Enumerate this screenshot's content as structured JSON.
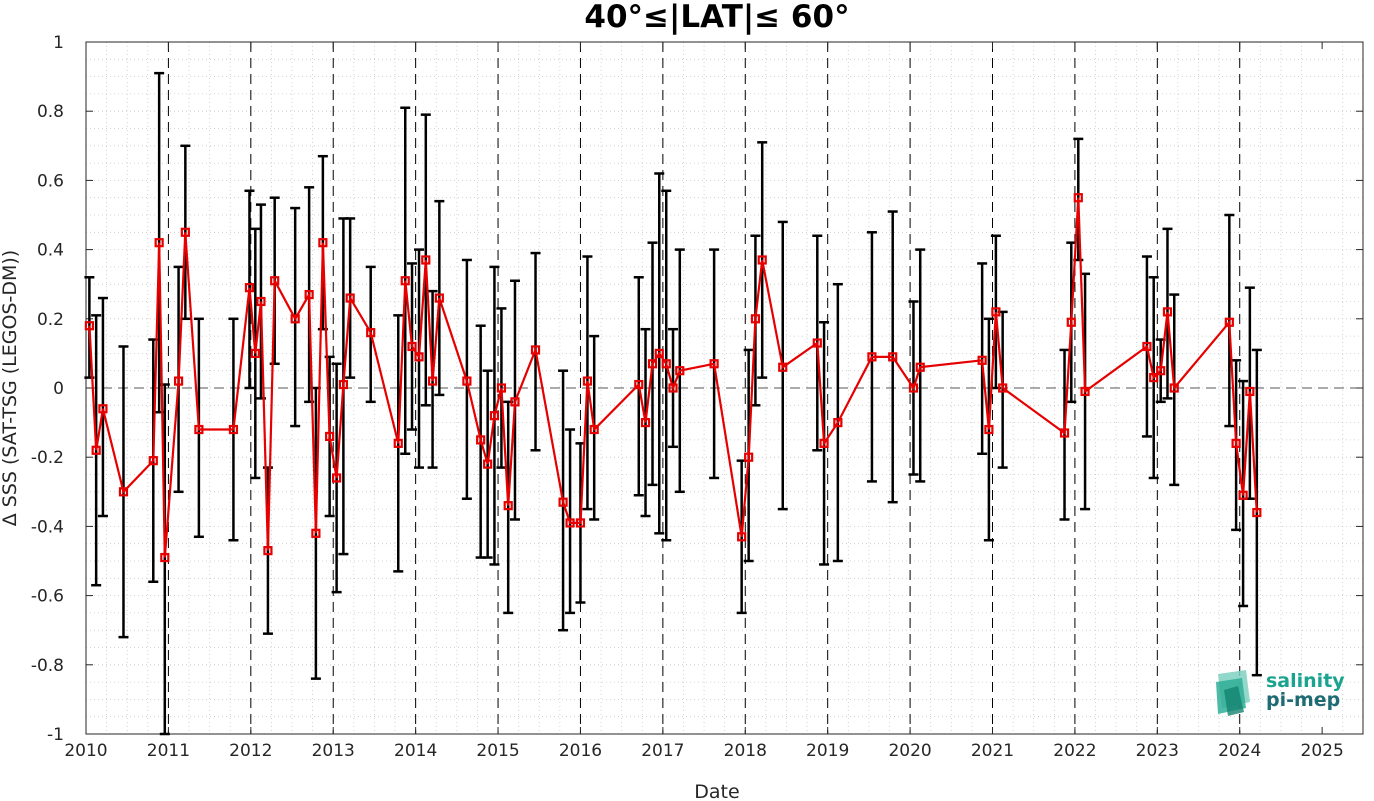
{
  "chart_data": {
    "type": "line",
    "title": "40°≤|LAT|≤ 60°",
    "xlabel": "Date",
    "ylabel": "Δ SSS (SAT-TSG (LEGOS-DM))",
    "xlim": [
      "2010-01-01",
      "2025-07-01"
    ],
    "ylim": [
      -1,
      1
    ],
    "x_ticks": [
      "2010",
      "2011",
      "2012",
      "2013",
      "2014",
      "2015",
      "2016",
      "2017",
      "2018",
      "2019",
      "2020",
      "2021",
      "2022",
      "2023",
      "2024",
      "2025"
    ],
    "y_ticks": [
      "-1",
      "-0.8",
      "-0.6",
      "-0.4",
      "-0.2",
      "0",
      "0.2",
      "0.4",
      "0.6",
      "0.8",
      "1"
    ],
    "grid": "dotted minor grid",
    "vertical_year_lines": "dashed at each January 1",
    "zero_line": "dashed",
    "series": [
      {
        "color": "#e60000",
        "marker": "square",
        "points": [
          {
            "x": "2010-01-16",
            "y": 0.18,
            "err_lo": 0.03,
            "err_hi": 0.32
          },
          {
            "x": "2010-02-15",
            "y": -0.18,
            "err_lo": -0.57,
            "err_hi": 0.21
          },
          {
            "x": "2010-03-17",
            "y": -0.06,
            "err_lo": -0.37,
            "err_hi": 0.26
          },
          {
            "x": "2010-06-16",
            "y": -0.3,
            "err_lo": -0.72,
            "err_hi": 0.12
          },
          {
            "x": "2010-10-26",
            "y": -0.21,
            "err_lo": -0.56,
            "err_hi": 0.14
          },
          {
            "x": "2010-11-21",
            "y": 0.42,
            "err_lo": -0.07,
            "err_hi": 0.91
          },
          {
            "x": "2010-12-16",
            "y": -0.49,
            "err_lo": -1.0,
            "err_hi": 0.01
          },
          {
            "x": "2011-02-15",
            "y": 0.02,
            "err_lo": -0.3,
            "err_hi": 0.35
          },
          {
            "x": "2011-03-17",
            "y": 0.45,
            "err_lo": 0.2,
            "err_hi": 0.7
          },
          {
            "x": "2011-05-16",
            "y": -0.12,
            "err_lo": -0.43,
            "err_hi": 0.2
          },
          {
            "x": "2011-10-16",
            "y": -0.12,
            "err_lo": -0.44,
            "err_hi": 0.2
          },
          {
            "x": "2011-12-26",
            "y": 0.29,
            "err_lo": 0.0,
            "err_hi": 0.57
          },
          {
            "x": "2012-01-21",
            "y": 0.1,
            "err_lo": -0.26,
            "err_hi": 0.46
          },
          {
            "x": "2012-02-15",
            "y": 0.25,
            "err_lo": -0.03,
            "err_hi": 0.53
          },
          {
            "x": "2012-03-17",
            "y": -0.47,
            "err_lo": -0.71,
            "err_hi": -0.23
          },
          {
            "x": "2012-04-16",
            "y": 0.31,
            "err_lo": 0.07,
            "err_hi": 0.55
          },
          {
            "x": "2012-07-16",
            "y": 0.2,
            "err_lo": -0.11,
            "err_hi": 0.52
          },
          {
            "x": "2012-09-16",
            "y": 0.27,
            "err_lo": -0.04,
            "err_hi": 0.58
          },
          {
            "x": "2012-10-16",
            "y": -0.42,
            "err_lo": -0.84,
            "err_hi": 0.0
          },
          {
            "x": "2012-11-16",
            "y": 0.42,
            "err_lo": 0.17,
            "err_hi": 0.67
          },
          {
            "x": "2012-12-16",
            "y": -0.14,
            "err_lo": -0.37,
            "err_hi": 0.09
          },
          {
            "x": "2013-01-16",
            "y": -0.26,
            "err_lo": -0.59,
            "err_hi": 0.07
          },
          {
            "x": "2013-02-15",
            "y": 0.01,
            "err_lo": -0.48,
            "err_hi": 0.49
          },
          {
            "x": "2013-03-17",
            "y": 0.26,
            "err_lo": 0.03,
            "err_hi": 0.49
          },
          {
            "x": "2013-06-16",
            "y": 0.16,
            "err_lo": -0.04,
            "err_hi": 0.35
          },
          {
            "x": "2013-10-16",
            "y": -0.16,
            "err_lo": -0.53,
            "err_hi": 0.21
          },
          {
            "x": "2013-11-16",
            "y": 0.31,
            "err_lo": -0.19,
            "err_hi": 0.81
          },
          {
            "x": "2013-12-16",
            "y": 0.12,
            "err_lo": -0.12,
            "err_hi": 0.36
          },
          {
            "x": "2014-01-16",
            "y": 0.09,
            "err_lo": -0.23,
            "err_hi": 0.4
          },
          {
            "x": "2014-02-15",
            "y": 0.37,
            "err_lo": -0.05,
            "err_hi": 0.79
          },
          {
            "x": "2014-03-17",
            "y": 0.02,
            "err_lo": -0.23,
            "err_hi": 0.28
          },
          {
            "x": "2014-04-16",
            "y": 0.26,
            "err_lo": -0.02,
            "err_hi": 0.54
          },
          {
            "x": "2014-08-16",
            "y": 0.02,
            "err_lo": -0.32,
            "err_hi": 0.37
          },
          {
            "x": "2014-10-16",
            "y": -0.15,
            "err_lo": -0.49,
            "err_hi": 0.18
          },
          {
            "x": "2014-11-16",
            "y": -0.22,
            "err_lo": -0.49,
            "err_hi": 0.05
          },
          {
            "x": "2014-12-16",
            "y": -0.08,
            "err_lo": -0.51,
            "err_hi": 0.35
          },
          {
            "x": "2015-01-16",
            "y": 0.0,
            "err_lo": -0.23,
            "err_hi": 0.23
          },
          {
            "x": "2015-02-15",
            "y": -0.34,
            "err_lo": -0.65,
            "err_hi": -0.04
          },
          {
            "x": "2015-03-17",
            "y": -0.04,
            "err_lo": -0.38,
            "err_hi": 0.31
          },
          {
            "x": "2015-06-16",
            "y": 0.11,
            "err_lo": -0.18,
            "err_hi": 0.39
          },
          {
            "x": "2015-10-16",
            "y": -0.33,
            "err_lo": -0.7,
            "err_hi": 0.05
          },
          {
            "x": "2015-11-16",
            "y": -0.39,
            "err_lo": -0.65,
            "err_hi": -0.12
          },
          {
            "x": "2016-01-01",
            "y": -0.39,
            "err_lo": -0.62,
            "err_hi": -0.16
          },
          {
            "x": "2016-02-01",
            "y": 0.02,
            "err_lo": -0.35,
            "err_hi": 0.38
          },
          {
            "x": "2016-03-02",
            "y": -0.12,
            "err_lo": -0.38,
            "err_hi": 0.15
          },
          {
            "x": "2016-09-16",
            "y": 0.01,
            "err_lo": -0.31,
            "err_hi": 0.32
          },
          {
            "x": "2016-10-16",
            "y": -0.1,
            "err_lo": -0.37,
            "err_hi": 0.17
          },
          {
            "x": "2016-11-16",
            "y": 0.07,
            "err_lo": -0.28,
            "err_hi": 0.42
          },
          {
            "x": "2016-12-16",
            "y": 0.1,
            "err_lo": -0.42,
            "err_hi": 0.62
          },
          {
            "x": "2017-01-16",
            "y": 0.07,
            "err_lo": -0.44,
            "err_hi": 0.57
          },
          {
            "x": "2017-02-15",
            "y": 0.0,
            "err_lo": -0.17,
            "err_hi": 0.17
          },
          {
            "x": "2017-03-17",
            "y": 0.05,
            "err_lo": -0.3,
            "err_hi": 0.4
          },
          {
            "x": "2017-08-16",
            "y": 0.07,
            "err_lo": -0.26,
            "err_hi": 0.4
          },
          {
            "x": "2017-12-16",
            "y": -0.43,
            "err_lo": -0.65,
            "err_hi": -0.21
          },
          {
            "x": "2018-01-16",
            "y": -0.2,
            "err_lo": -0.5,
            "err_hi": 0.11
          },
          {
            "x": "2018-02-15",
            "y": 0.2,
            "err_lo": -0.05,
            "err_hi": 0.44
          },
          {
            "x": "2018-03-17",
            "y": 0.37,
            "err_lo": 0.03,
            "err_hi": 0.71
          },
          {
            "x": "2018-06-16",
            "y": 0.06,
            "err_lo": -0.35,
            "err_hi": 0.48
          },
          {
            "x": "2018-11-16",
            "y": 0.13,
            "err_lo": -0.18,
            "err_hi": 0.44
          },
          {
            "x": "2018-12-16",
            "y": -0.16,
            "err_lo": -0.51,
            "err_hi": 0.19
          },
          {
            "x": "2019-02-15",
            "y": -0.1,
            "err_lo": -0.5,
            "err_hi": 0.3
          },
          {
            "x": "2019-07-16",
            "y": 0.09,
            "err_lo": -0.27,
            "err_hi": 0.45
          },
          {
            "x": "2019-10-16",
            "y": 0.09,
            "err_lo": -0.33,
            "err_hi": 0.51
          },
          {
            "x": "2020-01-16",
            "y": 0.0,
            "err_lo": -0.25,
            "err_hi": 0.25
          },
          {
            "x": "2020-02-15",
            "y": 0.06,
            "err_lo": -0.27,
            "err_hi": 0.4
          },
          {
            "x": "2020-11-16",
            "y": 0.08,
            "err_lo": -0.19,
            "err_hi": 0.36
          },
          {
            "x": "2020-12-16",
            "y": -0.12,
            "err_lo": -0.44,
            "err_hi": 0.2
          },
          {
            "x": "2021-01-16",
            "y": 0.22,
            "err_lo": 0.0,
            "err_hi": 0.44
          },
          {
            "x": "2021-02-15",
            "y": 0.0,
            "err_lo": -0.23,
            "err_hi": 0.22
          },
          {
            "x": "2021-11-16",
            "y": -0.13,
            "err_lo": -0.38,
            "err_hi": 0.11
          },
          {
            "x": "2021-12-16",
            "y": 0.19,
            "err_lo": -0.04,
            "err_hi": 0.42
          },
          {
            "x": "2022-01-16",
            "y": 0.55,
            "err_lo": 0.37,
            "err_hi": 0.72
          },
          {
            "x": "2022-02-15",
            "y": -0.01,
            "err_lo": -0.35,
            "err_hi": 0.33
          },
          {
            "x": "2022-11-16",
            "y": 0.12,
            "err_lo": -0.14,
            "err_hi": 0.38
          },
          {
            "x": "2022-12-16",
            "y": 0.03,
            "err_lo": -0.26,
            "err_hi": 0.32
          },
          {
            "x": "2023-01-16",
            "y": 0.05,
            "err_lo": -0.04,
            "err_hi": 0.14
          },
          {
            "x": "2023-02-15",
            "y": 0.22,
            "err_lo": -0.03,
            "err_hi": 0.46
          },
          {
            "x": "2023-03-17",
            "y": 0.0,
            "err_lo": -0.28,
            "err_hi": 0.27
          },
          {
            "x": "2023-11-16",
            "y": 0.19,
            "err_lo": -0.11,
            "err_hi": 0.5
          },
          {
            "x": "2023-12-16",
            "y": -0.16,
            "err_lo": -0.41,
            "err_hi": 0.08
          },
          {
            "x": "2024-01-16",
            "y": -0.31,
            "err_lo": -0.63,
            "err_hi": 0.02
          },
          {
            "x": "2024-02-15",
            "y": -0.01,
            "err_lo": -0.32,
            "err_hi": 0.29
          },
          {
            "x": "2024-03-17",
            "y": -0.36,
            "err_lo": -0.83,
            "err_hi": 0.11
          }
        ]
      }
    ]
  },
  "logo": {
    "line1": "salinity",
    "line2": "pi-mep",
    "color1": "#1aa38f",
    "color2": "#1f6b73"
  }
}
